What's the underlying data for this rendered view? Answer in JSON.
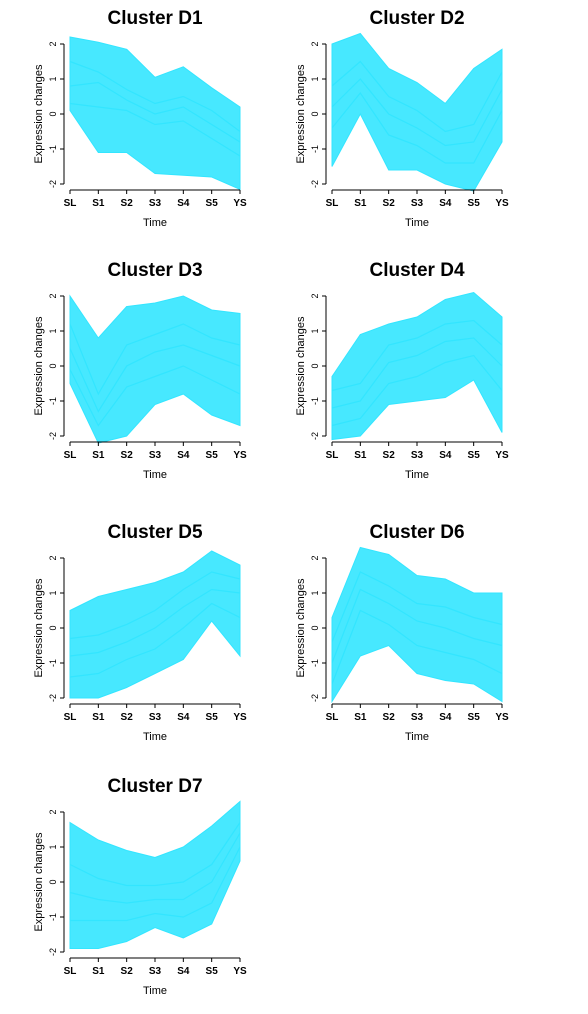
{
  "colors": {
    "line": "#33E5FF",
    "axis": "#000000",
    "background": "#FFFFFF"
  },
  "chart_data": [
    {
      "type": "line",
      "title": "Cluster D1",
      "xlabel": "Time",
      "ylabel": "Expression changes",
      "categories": [
        "SL",
        "S1",
        "S2",
        "S3",
        "S4",
        "S5",
        "YS"
      ],
      "ylim": [
        -2,
        2
      ],
      "yticks": [
        -2,
        -1,
        0,
        1,
        2
      ],
      "envelope": {
        "upper": [
          2.2,
          2.05,
          1.85,
          1.05,
          1.35,
          0.75,
          0.2
        ],
        "lower": [
          0.1,
          -1.1,
          -1.1,
          -1.7,
          -1.75,
          -1.8,
          -2.15
        ]
      },
      "series": [
        {
          "values": [
            1.5,
            1.2,
            0.7,
            0.3,
            0.5,
            0.1,
            -0.5
          ]
        },
        {
          "values": [
            0.8,
            0.9,
            0.4,
            0.0,
            0.2,
            -0.3,
            -0.8
          ]
        },
        {
          "values": [
            0.3,
            0.2,
            0.1,
            -0.3,
            -0.2,
            -0.7,
            -1.2
          ]
        }
      ]
    },
    {
      "type": "line",
      "title": "Cluster D2",
      "xlabel": "Time",
      "ylabel": "Expression changes",
      "categories": [
        "SL",
        "S1",
        "S2",
        "S3",
        "S4",
        "S5",
        "YS"
      ],
      "ylim": [
        -2,
        2
      ],
      "yticks": [
        -2,
        -1,
        0,
        1,
        2
      ],
      "envelope": {
        "upper": [
          2.0,
          2.3,
          1.3,
          0.9,
          0.3,
          1.3,
          1.85
        ],
        "lower": [
          -1.5,
          0.0,
          -1.6,
          -1.6,
          -2.0,
          -2.2,
          -0.8
        ]
      },
      "series": [
        {
          "values": [
            0.8,
            1.5,
            0.5,
            0.1,
            -0.5,
            -0.3,
            1.2
          ]
        },
        {
          "values": [
            0.2,
            1.0,
            0.0,
            -0.4,
            -0.9,
            -0.8,
            0.7
          ]
        },
        {
          "values": [
            -0.4,
            0.6,
            -0.6,
            -0.9,
            -1.4,
            -1.4,
            0.1
          ]
        }
      ]
    },
    {
      "type": "line",
      "title": "Cluster D3",
      "xlabel": "Time",
      "ylabel": "Expression changes",
      "categories": [
        "SL",
        "S1",
        "S2",
        "S3",
        "S4",
        "S5",
        "YS"
      ],
      "ylim": [
        -2,
        2
      ],
      "yticks": [
        -2,
        -1,
        0,
        1,
        2
      ],
      "envelope": {
        "upper": [
          2.0,
          0.8,
          1.7,
          1.8,
          2.0,
          1.6,
          1.5
        ],
        "lower": [
          -0.5,
          -2.2,
          -2.0,
          -1.1,
          -0.8,
          -1.4,
          -1.7
        ]
      },
      "series": [
        {
          "values": [
            1.2,
            -0.8,
            0.6,
            0.9,
            1.2,
            0.8,
            0.6
          ]
        },
        {
          "values": [
            0.5,
            -1.3,
            0.0,
            0.4,
            0.6,
            0.3,
            0.0
          ]
        },
        {
          "values": [
            -0.1,
            -1.7,
            -0.6,
            -0.3,
            0.0,
            -0.4,
            -0.8
          ]
        }
      ]
    },
    {
      "type": "line",
      "title": "Cluster D4",
      "xlabel": "Time",
      "ylabel": "Expression changes",
      "categories": [
        "SL",
        "S1",
        "S2",
        "S3",
        "S4",
        "S5",
        "YS"
      ],
      "ylim": [
        -2,
        2
      ],
      "yticks": [
        -2,
        -1,
        0,
        1,
        2
      ],
      "envelope": {
        "upper": [
          -0.3,
          0.9,
          1.2,
          1.4,
          1.9,
          2.1,
          1.4
        ],
        "lower": [
          -2.1,
          -2.0,
          -1.1,
          -1.0,
          -0.9,
          -0.4,
          -1.9
        ]
      },
      "series": [
        {
          "values": [
            -0.7,
            -0.5,
            0.6,
            0.8,
            1.2,
            1.3,
            0.6
          ]
        },
        {
          "values": [
            -1.2,
            -1.0,
            0.1,
            0.3,
            0.7,
            0.8,
            0.0
          ]
        },
        {
          "values": [
            -1.7,
            -1.5,
            -0.5,
            -0.3,
            0.1,
            0.3,
            -0.7
          ]
        }
      ]
    },
    {
      "type": "line",
      "title": "Cluster D5",
      "xlabel": "Time",
      "ylabel": "Expression changes",
      "categories": [
        "SL",
        "S1",
        "S2",
        "S3",
        "S4",
        "S5",
        "YS"
      ],
      "ylim": [
        -2,
        2
      ],
      "yticks": [
        -2,
        -1,
        0,
        1,
        2
      ],
      "envelope": {
        "upper": [
          0.5,
          0.9,
          1.1,
          1.3,
          1.6,
          2.2,
          1.8
        ],
        "lower": [
          -2.0,
          -2.0,
          -1.7,
          -1.3,
          -0.9,
          0.2,
          -0.8
        ]
      },
      "series": [
        {
          "values": [
            -0.3,
            -0.2,
            0.1,
            0.5,
            1.1,
            1.6,
            1.4
          ]
        },
        {
          "values": [
            -0.8,
            -0.7,
            -0.4,
            0.0,
            0.6,
            1.1,
            1.0
          ]
        },
        {
          "values": [
            -1.4,
            -1.3,
            -0.9,
            -0.6,
            0.0,
            0.7,
            0.3
          ]
        }
      ]
    },
    {
      "type": "line",
      "title": "Cluster D6",
      "xlabel": "Time",
      "ylabel": "Expression changes",
      "categories": [
        "SL",
        "S1",
        "S2",
        "S3",
        "S4",
        "S5",
        "YS"
      ],
      "ylim": [
        -2,
        2
      ],
      "yticks": [
        -2,
        -1,
        0,
        1,
        2
      ],
      "envelope": {
        "upper": [
          0.3,
          2.3,
          2.1,
          1.5,
          1.4,
          1.0,
          1.0
        ],
        "lower": [
          -2.1,
          -0.8,
          -0.5,
          -1.3,
          -1.5,
          -1.6,
          -2.1
        ]
      },
      "series": [
        {
          "values": [
            -0.4,
            1.6,
            1.2,
            0.7,
            0.6,
            0.3,
            0.1
          ]
        },
        {
          "values": [
            -1.0,
            1.1,
            0.7,
            0.2,
            0.0,
            -0.3,
            -0.5
          ]
        },
        {
          "values": [
            -1.6,
            0.5,
            0.1,
            -0.5,
            -0.7,
            -0.9,
            -1.3
          ]
        }
      ]
    },
    {
      "type": "line",
      "title": "Cluster D7",
      "xlabel": "Time",
      "ylabel": "Expression changes",
      "categories": [
        "SL",
        "S1",
        "S2",
        "S3",
        "S4",
        "S5",
        "YS"
      ],
      "ylim": [
        -2,
        2
      ],
      "yticks": [
        -2,
        -1,
        0,
        1,
        2
      ],
      "envelope": {
        "upper": [
          1.7,
          1.2,
          0.9,
          0.7,
          1.0,
          1.6,
          2.3
        ],
        "lower": [
          -1.9,
          -1.9,
          -1.7,
          -1.3,
          -1.6,
          -1.2,
          0.6
        ]
      },
      "series": [
        {
          "values": [
            0.5,
            0.1,
            -0.1,
            -0.1,
            0.0,
            0.5,
            1.7
          ]
        },
        {
          "values": [
            -0.3,
            -0.5,
            -0.6,
            -0.5,
            -0.5,
            0.0,
            1.4
          ]
        },
        {
          "values": [
            -1.1,
            -1.1,
            -1.1,
            -0.9,
            -1.0,
            -0.6,
            1.0
          ]
        }
      ]
    }
  ]
}
